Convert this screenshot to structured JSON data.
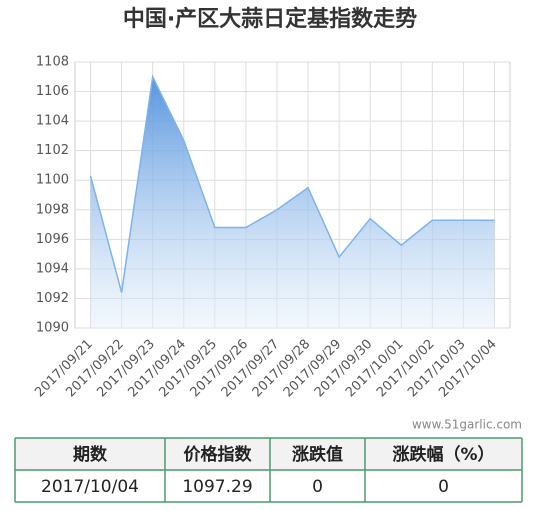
{
  "chart_data": {
    "type": "line",
    "title": "中国·产区大蒜日定基指数走势",
    "categories": [
      "2017/09/21",
      "2017/09/22",
      "2017/09/23",
      "2017/09/24",
      "2017/09/25",
      "2017/09/26",
      "2017/09/27",
      "2017/09/28",
      "2017/09/29",
      "2017/09/30",
      "2017/10/01",
      "2017/10/02",
      "2017/10/03",
      "2017/10/04"
    ],
    "values": [
      1100.3,
      1092.4,
      1107.0,
      1102.7,
      1096.8,
      1096.8,
      1098.0,
      1099.5,
      1094.8,
      1097.4,
      1095.6,
      1097.29,
      1097.29,
      1097.29
    ],
    "color": "#7eb4e8",
    "ylim": [
      1090,
      1108
    ],
    "yticks": [
      1090,
      1092,
      1094,
      1096,
      1098,
      1100,
      1102,
      1104,
      1106,
      1108
    ],
    "grid": true,
    "area": true
  },
  "watermark": "www.51garlic.com",
  "table": {
    "headers": [
      "期数",
      "价格指数",
      "涨跌值",
      "涨跌幅（%）"
    ],
    "rows": [
      [
        "2017/10/04",
        "1097.29",
        "0",
        "0"
      ]
    ]
  }
}
